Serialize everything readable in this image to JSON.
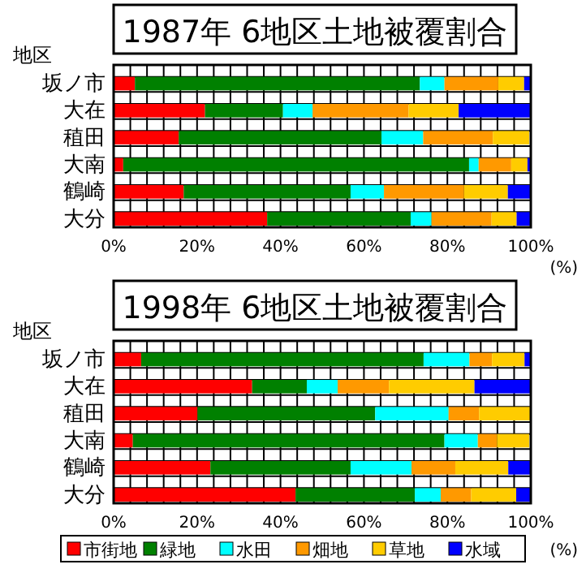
{
  "chart_data": [
    {
      "type": "bar",
      "orientation": "horizontal",
      "stacked": true,
      "title": "1987年 6地区土地被覆割合",
      "ylabel": "地区",
      "xlabel": "(%)",
      "categories": [
        "坂ノ市",
        "大在",
        "稙田",
        "大南",
        "鶴崎",
        "大分"
      ],
      "series": [
        {
          "color": "#ff0000",
          "values": [
            5.1,
            21.9,
            15.6,
            2.3,
            16.8,
            36.8
          ]
        },
        {
          "color": "#008000",
          "values": [
            68.3,
            18.7,
            48.6,
            82.9,
            40,
            34.4
          ]
        },
        {
          "color": "#00ffff",
          "values": [
            5.9,
            7.1,
            10,
            2.3,
            8,
            5
          ]
        },
        {
          "color": "#ff9900",
          "values": [
            12.9,
            23,
            16.7,
            7.8,
            19.2,
            14.4
          ]
        },
        {
          "color": "#ffcc00",
          "values": [
            6.2,
            12,
            8.7,
            3.9,
            10.5,
            6
          ]
        },
        {
          "color": "#0000ff",
          "values": [
            1.6,
            17.3,
            null,
            0.8,
            5.5,
            3.4
          ]
        }
      ],
      "xlim": [
        0,
        100
      ],
      "xticks": [
        {
          "value": 0,
          "label": "0%"
        },
        {
          "value": 4,
          "label": null
        },
        {
          "value": 8,
          "label": null
        },
        {
          "value": 12,
          "label": null
        },
        {
          "value": 16,
          "label": null
        },
        {
          "value": 20,
          "label": "20%"
        },
        {
          "value": 24,
          "label": null
        },
        {
          "value": 28,
          "label": null
        },
        {
          "value": 32,
          "label": null
        },
        {
          "value": 36,
          "label": null
        },
        {
          "value": 40,
          "label": "40%"
        },
        {
          "value": 44,
          "label": null
        },
        {
          "value": 48,
          "label": null
        },
        {
          "value": 52,
          "label": null
        },
        {
          "value": 56,
          "label": null
        },
        {
          "value": 60,
          "label": "60%"
        },
        {
          "value": 64,
          "label": null
        },
        {
          "value": 68,
          "label": null
        },
        {
          "value": 72,
          "label": null
        },
        {
          "value": 76,
          "label": null
        },
        {
          "value": 80,
          "label": "80%"
        },
        {
          "value": 84,
          "label": null
        },
        {
          "value": 88,
          "label": null
        },
        {
          "value": 92,
          "label": null
        },
        {
          "value": 96,
          "label": null
        },
        {
          "value": 100,
          "label": "100%"
        }
      ],
      "grid": true,
      "legend": false
    },
    {
      "type": "bar",
      "orientation": "horizontal",
      "stacked": true,
      "title": "1998年 6地区土地被覆割合",
      "ylabel": "地区",
      "xlabel": "(%)",
      "categories": [
        "坂ノ市",
        "大在",
        "稙田",
        "大南",
        "鶴崎",
        "大分"
      ],
      "series": [
        {
          "name": "市街地",
          "color": "#ff0000",
          "values": [
            6.6,
            33.2,
            20.1,
            4.6,
            23.2,
            43.6
          ]
        },
        {
          "name": "緑地",
          "color": "#008000",
          "values": [
            67.7,
            13.1,
            42.6,
            74.7,
            33.6,
            28.6
          ]
        },
        {
          "name": "水田",
          "color": "#00ffff",
          "values": [
            11,
            7.4,
            17.6,
            8,
            14.6,
            6.2
          ]
        },
        {
          "name": "畑地",
          "color": "#ff9900",
          "values": [
            5.4,
            12.3,
            7.3,
            4.6,
            10.5,
            7.3
          ]
        },
        {
          "name": "草地",
          "color": "#ffcc00",
          "values": [
            7.8,
            20.5,
            12.4,
            7.7,
            12.7,
            10.8
          ]
        },
        {
          "name": "水域",
          "color": "#0000ff",
          "values": [
            1.5,
            13.5,
            0,
            null,
            5.4,
            3.5
          ]
        }
      ],
      "xlim": [
        0,
        100
      ],
      "xticks": [
        {
          "value": 0,
          "label": "0%"
        },
        {
          "value": 4,
          "label": null
        },
        {
          "value": 8,
          "label": null
        },
        {
          "value": 12,
          "label": null
        },
        {
          "value": 16,
          "label": null
        },
        {
          "value": 20,
          "label": "20%"
        },
        {
          "value": 24,
          "label": null
        },
        {
          "value": 28,
          "label": null
        },
        {
          "value": 32,
          "label": null
        },
        {
          "value": 36,
          "label": null
        },
        {
          "value": 40,
          "label": "40%"
        },
        {
          "value": 44,
          "label": null
        },
        {
          "value": 48,
          "label": null
        },
        {
          "value": 52,
          "label": null
        },
        {
          "value": 56,
          "label": null
        },
        {
          "value": 60,
          "label": "60%"
        },
        {
          "value": 64,
          "label": null
        },
        {
          "value": 68,
          "label": null
        },
        {
          "value": 72,
          "label": null
        },
        {
          "value": 76,
          "label": null
        },
        {
          "value": 80,
          "label": "80%"
        },
        {
          "value": 84,
          "label": null
        },
        {
          "value": 88,
          "label": null
        },
        {
          "value": 92,
          "label": null
        },
        {
          "value": 96,
          "label": null
        },
        {
          "value": 100,
          "label": "100%"
        }
      ],
      "grid": true,
      "legend": "bottom"
    }
  ]
}
